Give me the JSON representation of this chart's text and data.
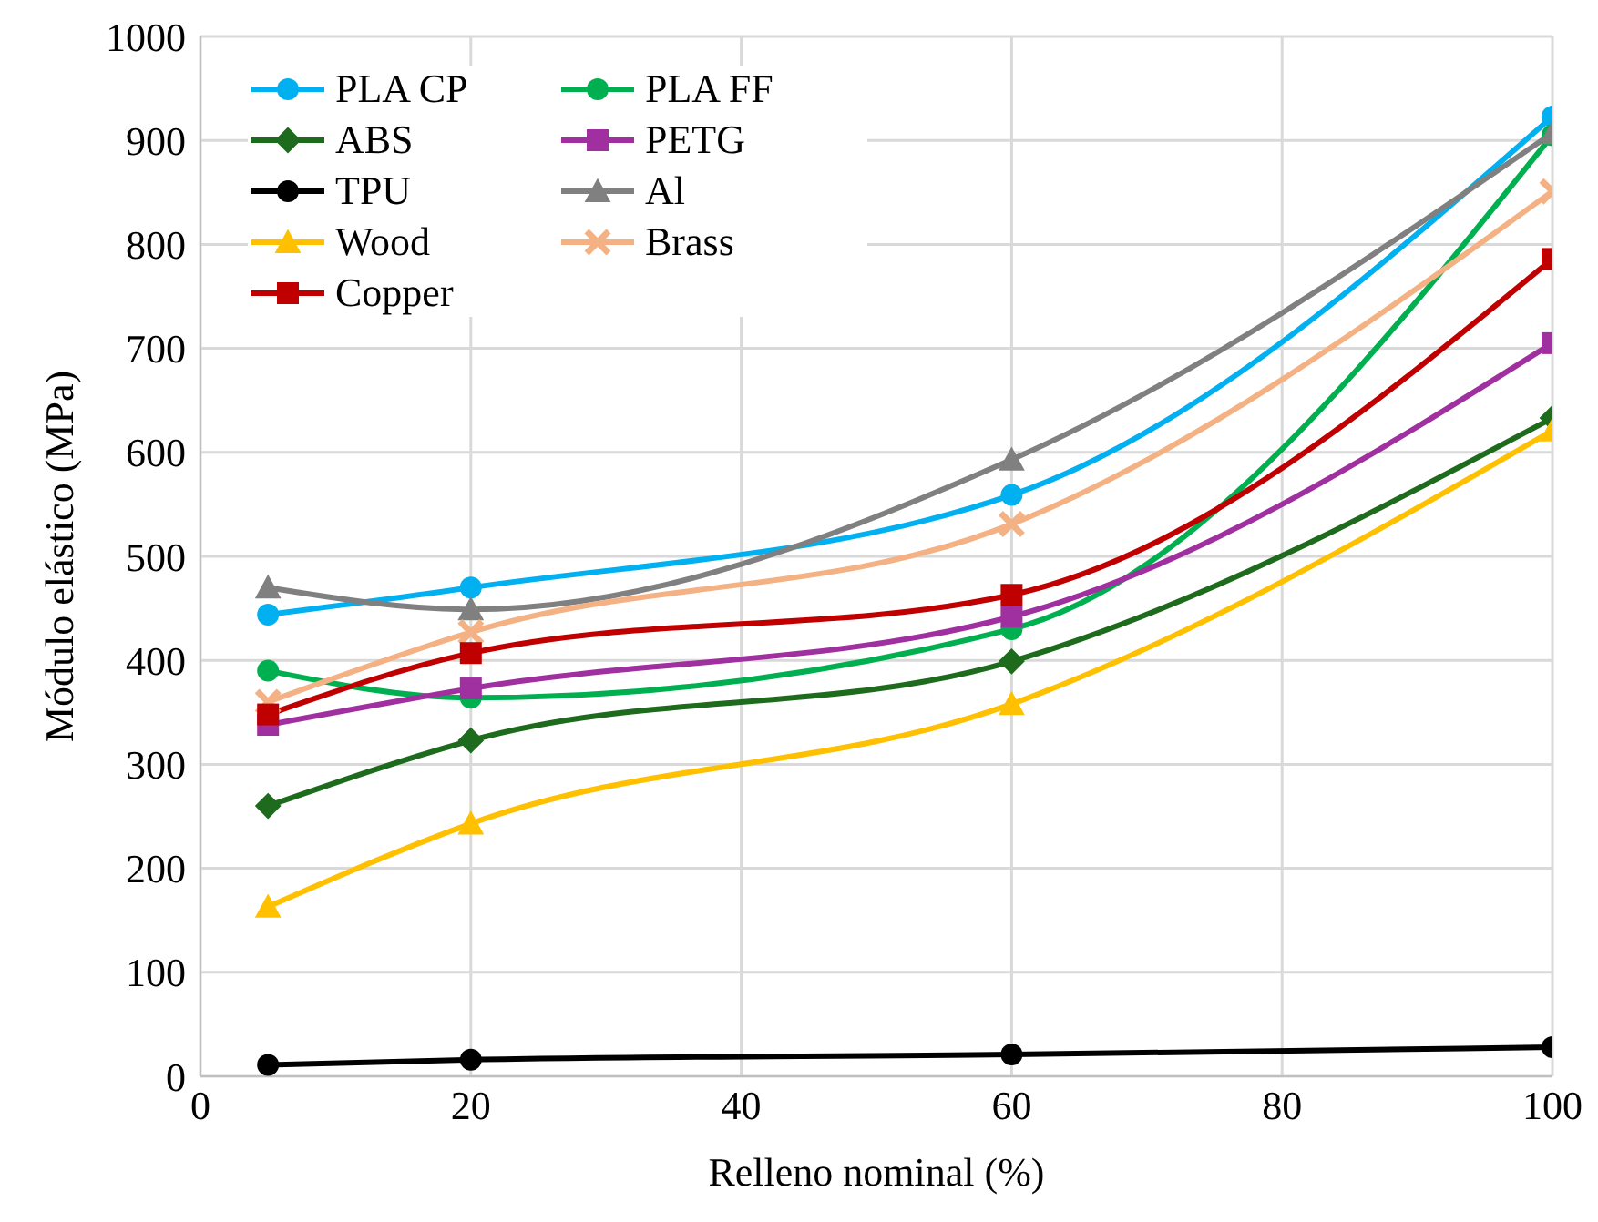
{
  "chart_data": {
    "type": "line",
    "xlabel": "Relleno nominal (%)",
    "ylabel": "Módulo elástico (MPa)",
    "x": [
      5,
      20,
      60,
      100
    ],
    "xlim": [
      0,
      100
    ],
    "xticks": [
      0,
      20,
      40,
      60,
      80,
      100
    ],
    "ylim": [
      0,
      1000
    ],
    "yticks": [
      0,
      100,
      200,
      300,
      400,
      500,
      600,
      700,
      800,
      900,
      1000
    ],
    "grid": true,
    "legend": "top left",
    "line_style": "solid",
    "series": [
      {
        "name": "PLA CP",
        "color": "#00b0f0",
        "marker": "circle",
        "values": [
          444,
          470,
          559,
          923
        ]
      },
      {
        "name": "PLA FF",
        "color": "#00b050",
        "marker": "circle",
        "values": [
          390,
          364,
          430,
          905
        ]
      },
      {
        "name": "ABS",
        "color": "#1e6b1e",
        "marker": "diamond",
        "values": [
          260,
          323,
          399,
          633
        ]
      },
      {
        "name": "PETG",
        "color": "#a030a0",
        "marker": "square",
        "values": [
          338,
          373,
          442,
          705
        ]
      },
      {
        "name": "TPU",
        "color": "#000000",
        "marker": "circle",
        "values": [
          11,
          16,
          21,
          28
        ]
      },
      {
        "name": "Al",
        "color": "#808080",
        "marker": "triangle",
        "values": [
          470,
          449,
          593,
          907
        ]
      },
      {
        "name": "Wood",
        "color": "#ffc000",
        "marker": "triangle",
        "values": [
          163,
          243,
          358,
          621
        ]
      },
      {
        "name": "Brass",
        "color": "#f4b183",
        "marker": "cross",
        "values": [
          360,
          427,
          531,
          851
        ]
      },
      {
        "name": "Copper",
        "color": "#c00000",
        "marker": "square",
        "values": [
          348,
          407,
          463,
          786
        ]
      }
    ]
  }
}
